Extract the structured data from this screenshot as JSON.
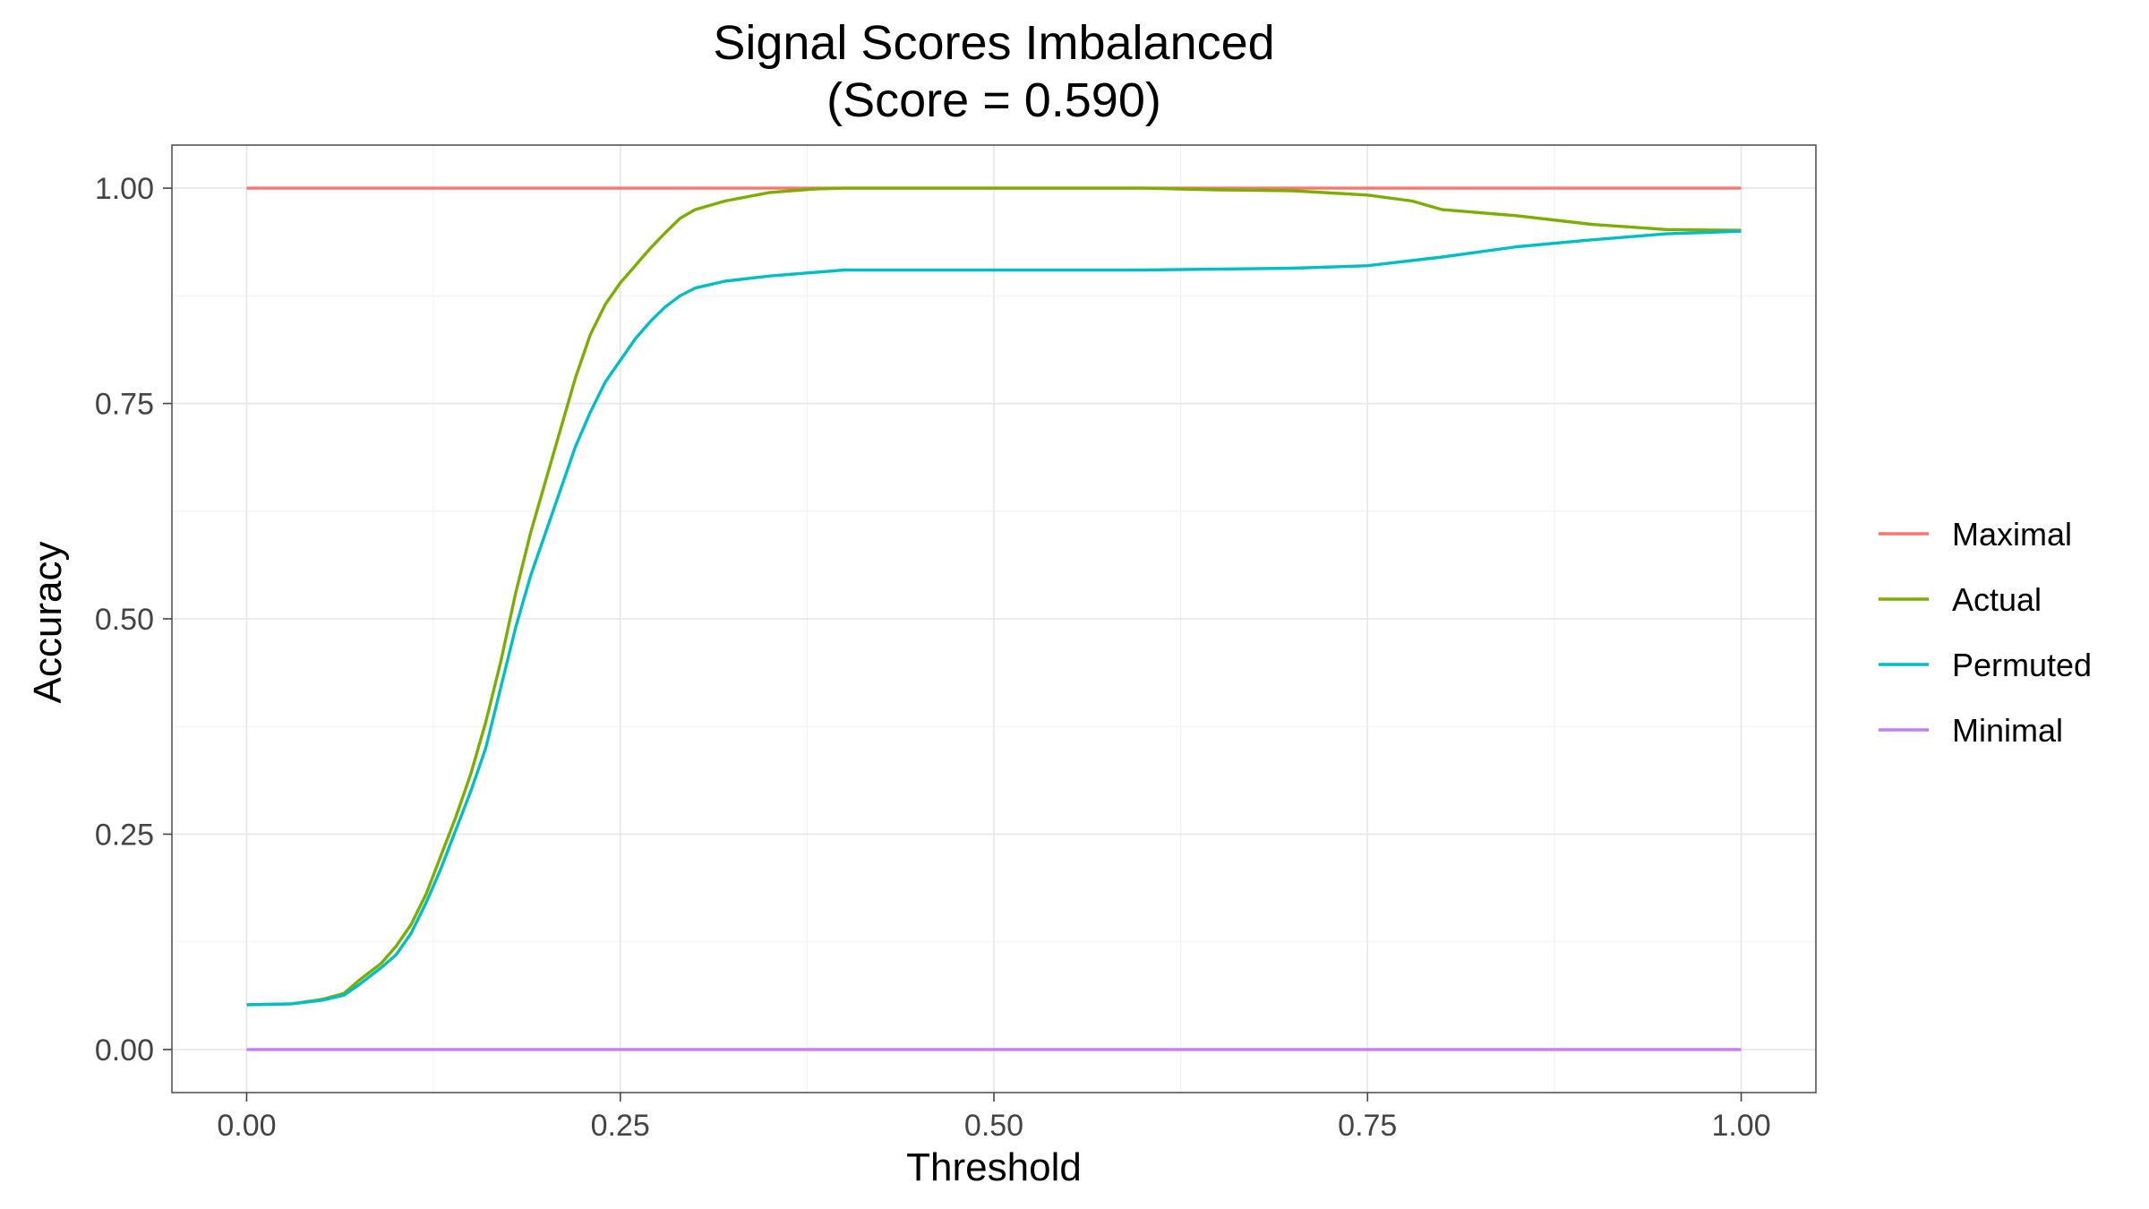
{
  "chart_data": {
    "type": "line",
    "title": "Signal Scores Imbalanced",
    "subtitle": "(Score = 0.590)",
    "xlabel": "Threshold",
    "ylabel": "Accuracy",
    "xlim": [
      -0.05,
      1.05
    ],
    "ylim": [
      -0.05,
      1.05
    ],
    "x_ticks": [
      0.0,
      0.25,
      0.5,
      0.75,
      1.0
    ],
    "x_tick_labels": [
      "0.00",
      "0.25",
      "0.50",
      "0.75",
      "1.00"
    ],
    "y_ticks": [
      0.0,
      0.25,
      0.5,
      0.75,
      1.0
    ],
    "y_tick_labels": [
      "0.00",
      "0.25",
      "0.50",
      "0.75",
      "1.00"
    ],
    "grid": true,
    "legend_position": "right",
    "series": [
      {
        "name": "Maximal",
        "color": "#F8766D",
        "x": [
          0.0,
          1.0
        ],
        "y": [
          1.0,
          1.0
        ]
      },
      {
        "name": "Actual",
        "color": "#7CAE00",
        "x": [
          0.0,
          0.03,
          0.05,
          0.065,
          0.075,
          0.09,
          0.1,
          0.11,
          0.12,
          0.13,
          0.14,
          0.15,
          0.16,
          0.17,
          0.18,
          0.19,
          0.2,
          0.21,
          0.22,
          0.23,
          0.24,
          0.25,
          0.26,
          0.27,
          0.28,
          0.29,
          0.3,
          0.32,
          0.35,
          0.38,
          0.4,
          0.5,
          0.6,
          0.65,
          0.7,
          0.75,
          0.78,
          0.8,
          0.85,
          0.9,
          0.95,
          1.0
        ],
        "y": [
          0.052,
          0.053,
          0.058,
          0.065,
          0.08,
          0.1,
          0.12,
          0.145,
          0.18,
          0.225,
          0.27,
          0.32,
          0.38,
          0.45,
          0.53,
          0.6,
          0.66,
          0.72,
          0.78,
          0.83,
          0.865,
          0.89,
          0.91,
          0.93,
          0.948,
          0.965,
          0.975,
          0.985,
          0.995,
          0.999,
          1.0,
          1.0,
          1.0,
          0.998,
          0.997,
          0.992,
          0.985,
          0.975,
          0.968,
          0.958,
          0.952,
          0.951
        ]
      },
      {
        "name": "Permuted",
        "color": "#00BFC4",
        "x": [
          0.0,
          0.03,
          0.05,
          0.065,
          0.075,
          0.09,
          0.1,
          0.11,
          0.12,
          0.13,
          0.14,
          0.15,
          0.16,
          0.17,
          0.18,
          0.19,
          0.2,
          0.21,
          0.22,
          0.23,
          0.24,
          0.25,
          0.26,
          0.27,
          0.28,
          0.29,
          0.3,
          0.32,
          0.35,
          0.4,
          0.5,
          0.6,
          0.7,
          0.75,
          0.8,
          0.85,
          0.9,
          0.95,
          1.0
        ],
        "y": [
          0.052,
          0.053,
          0.057,
          0.063,
          0.075,
          0.095,
          0.11,
          0.135,
          0.17,
          0.21,
          0.255,
          0.3,
          0.35,
          0.42,
          0.49,
          0.55,
          0.6,
          0.65,
          0.7,
          0.74,
          0.775,
          0.8,
          0.825,
          0.845,
          0.862,
          0.875,
          0.884,
          0.892,
          0.898,
          0.905,
          0.905,
          0.905,
          0.907,
          0.91,
          0.92,
          0.932,
          0.94,
          0.947,
          0.95
        ]
      },
      {
        "name": "Minimal",
        "color": "#C77CFF",
        "x": [
          0.0,
          1.0
        ],
        "y": [
          0.0,
          0.0
        ]
      }
    ]
  }
}
